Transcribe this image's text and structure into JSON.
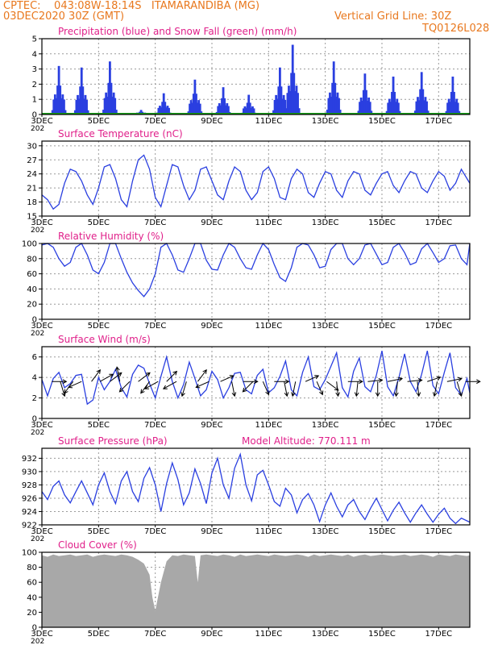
{
  "header": {
    "line1": "CPTEC:    043:08W-18:14S   ITAMARANDIBA (MG)",
    "line2": "03DEC2020 30Z (GMT)",
    "grid_note": "Vertical Grid Line: 30Z",
    "run_id": "TQ0126L028"
  },
  "colors": {
    "header": "#e8781e",
    "title": "#e0208a",
    "series": "#2a3fe0",
    "snow": "#18a018",
    "cloud": "#a8a8a8",
    "arrow": "#000000",
    "grid": "#9a9a9a"
  },
  "x_axis": {
    "start_day": 3,
    "end_day": 18.1,
    "tick_days": [
      3,
      5,
      7,
      9,
      11,
      13,
      15,
      17
    ],
    "tick_labels": [
      "3DEC",
      "5DEC",
      "7DEC",
      "9DEC",
      "11DEC",
      "13DEC",
      "15DEC",
      "17DEC"
    ],
    "clipped_label": "202"
  },
  "chart_data": [
    {
      "type": "bar",
      "title": "Precipitation (blue) and Snow Fall (green) (mm/h)",
      "ylim": [
        0,
        5
      ],
      "yticks": [
        "0",
        "1",
        "2",
        "3",
        "4",
        "5"
      ],
      "grid": true,
      "series": [
        {
          "name": "Precipitation",
          "peaks": [
            {
              "day": 3.6,
              "value": 3.2
            },
            {
              "day": 4.4,
              "value": 3.1
            },
            {
              "day": 5.4,
              "value": 3.5
            },
            {
              "day": 6.5,
              "value": 0.3
            },
            {
              "day": 7.3,
              "value": 1.4
            },
            {
              "day": 8.4,
              "value": 2.3
            },
            {
              "day": 9.4,
              "value": 1.8
            },
            {
              "day": 10.3,
              "value": 1.3
            },
            {
              "day": 11.4,
              "value": 3.1
            },
            {
              "day": 11.85,
              "value": 4.6
            },
            {
              "day": 13.3,
              "value": 3.5
            },
            {
              "day": 14.4,
              "value": 2.7
            },
            {
              "day": 15.4,
              "value": 2.5
            },
            {
              "day": 16.4,
              "value": 2.8
            },
            {
              "day": 17.5,
              "value": 2.5
            }
          ]
        },
        {
          "name": "Snow Fall",
          "value_all": 0
        }
      ]
    },
    {
      "type": "line",
      "title": "Surface Temperature (nC)",
      "ylim": [
        15,
        31
      ],
      "yticks": [
        "15",
        "18",
        "21",
        "24",
        "27",
        "30"
      ],
      "grid": true,
      "x": [
        3.0,
        3.2,
        3.4,
        3.6,
        3.8,
        4.0,
        4.2,
        4.4,
        4.6,
        4.8,
        5.0,
        5.2,
        5.4,
        5.6,
        5.8,
        6.0,
        6.2,
        6.4,
        6.6,
        6.8,
        7.0,
        7.2,
        7.4,
        7.6,
        7.8,
        8.0,
        8.2,
        8.4,
        8.6,
        8.8,
        9.0,
        9.2,
        9.4,
        9.6,
        9.8,
        10.0,
        10.2,
        10.4,
        10.6,
        10.8,
        11.0,
        11.2,
        11.4,
        11.6,
        11.8,
        12.0,
        12.2,
        12.4,
        12.6,
        12.8,
        13.0,
        13.2,
        13.4,
        13.6,
        13.8,
        14.0,
        14.2,
        14.4,
        14.6,
        14.8,
        15.0,
        15.2,
        15.4,
        15.6,
        15.8,
        16.0,
        16.2,
        16.4,
        16.6,
        16.8,
        17.0,
        17.2,
        17.4,
        17.6,
        17.8,
        18.0,
        18.1
      ],
      "y": [
        19.5,
        18.5,
        16.5,
        17.5,
        22.0,
        25.0,
        24.5,
        22.5,
        19.5,
        17.5,
        21.0,
        25.5,
        26.0,
        23.0,
        18.5,
        17.0,
        22.5,
        27.0,
        28.0,
        25.0,
        19.0,
        17.0,
        21.5,
        26.0,
        25.5,
        21.5,
        18.5,
        20.5,
        25.0,
        25.5,
        22.5,
        19.5,
        18.5,
        22.5,
        25.5,
        24.5,
        20.5,
        18.5,
        20.0,
        24.5,
        25.5,
        23.0,
        19.0,
        18.5,
        23.0,
        25.0,
        24.0,
        20.0,
        19.0,
        22.0,
        24.5,
        24.0,
        20.5,
        19.0,
        22.5,
        24.5,
        24.0,
        20.5,
        19.5,
        22.0,
        24.0,
        24.5,
        21.5,
        20.0,
        22.5,
        24.5,
        24.0,
        21.0,
        20.0,
        22.5,
        24.5,
        23.5,
        20.5,
        22.0,
        25.0,
        23.0,
        22.0
      ]
    },
    {
      "type": "line",
      "title": "Relative Humidity (%)",
      "ylim": [
        0,
        100
      ],
      "yticks": [
        "0",
        "20",
        "40",
        "60",
        "80",
        "100"
      ],
      "grid": true,
      "x": [
        3.0,
        3.2,
        3.4,
        3.6,
        3.8,
        4.0,
        4.2,
        4.4,
        4.6,
        4.8,
        5.0,
        5.2,
        5.4,
        5.6,
        5.8,
        6.0,
        6.2,
        6.4,
        6.6,
        6.8,
        7.0,
        7.2,
        7.4,
        7.6,
        7.8,
        8.0,
        8.2,
        8.4,
        8.6,
        8.8,
        9.0,
        9.2,
        9.4,
        9.6,
        9.8,
        10.0,
        10.2,
        10.4,
        10.6,
        10.8,
        11.0,
        11.2,
        11.4,
        11.6,
        11.8,
        12.0,
        12.2,
        12.4,
        12.6,
        12.8,
        13.0,
        13.2,
        13.4,
        13.6,
        13.8,
        14.0,
        14.2,
        14.4,
        14.6,
        14.8,
        15.0,
        15.2,
        15.4,
        15.6,
        15.8,
        16.0,
        16.2,
        16.4,
        16.6,
        16.8,
        17.0,
        17.2,
        17.4,
        17.6,
        17.8,
        18.0,
        18.1
      ],
      "y": [
        98,
        100,
        95,
        80,
        70,
        75,
        95,
        100,
        85,
        65,
        60,
        75,
        100,
        100,
        80,
        62,
        48,
        38,
        30,
        40,
        60,
        95,
        100,
        85,
        65,
        62,
        80,
        100,
        100,
        78,
        66,
        65,
        85,
        100,
        95,
        80,
        68,
        66,
        85,
        100,
        92,
        72,
        55,
        50,
        68,
        95,
        100,
        98,
        85,
        68,
        70,
        92,
        100,
        100,
        80,
        72,
        80,
        98,
        100,
        86,
        72,
        75,
        95,
        100,
        88,
        72,
        75,
        93,
        100,
        88,
        75,
        80,
        97,
        98,
        80,
        72,
        100
      ]
    },
    {
      "type": "line",
      "title": "Surface Wind (m/s)",
      "ylim": [
        0,
        7
      ],
      "yticks": [
        "0",
        "2",
        "4",
        "6"
      ],
      "grid": true,
      "x": [
        3.0,
        3.2,
        3.4,
        3.6,
        3.8,
        4.0,
        4.2,
        4.4,
        4.6,
        4.8,
        5.0,
        5.2,
        5.4,
        5.6,
        5.8,
        6.0,
        6.2,
        6.4,
        6.6,
        6.8,
        7.0,
        7.2,
        7.4,
        7.6,
        7.8,
        8.0,
        8.2,
        8.4,
        8.6,
        8.8,
        9.0,
        9.2,
        9.4,
        9.6,
        9.8,
        10.0,
        10.2,
        10.4,
        10.6,
        10.8,
        11.0,
        11.2,
        11.4,
        11.6,
        11.8,
        12.0,
        12.2,
        12.4,
        12.6,
        12.8,
        13.0,
        13.2,
        13.4,
        13.6,
        13.8,
        14.0,
        14.2,
        14.4,
        14.6,
        14.8,
        15.0,
        15.2,
        15.4,
        15.6,
        15.8,
        16.0,
        16.2,
        16.4,
        16.6,
        16.8,
        17.0,
        17.2,
        17.4,
        17.6,
        17.8,
        18.0,
        18.1
      ],
      "y": [
        3.8,
        2.2,
        3.9,
        4.5,
        3.0,
        3.4,
        4.2,
        4.3,
        1.4,
        1.8,
        4.0,
        2.8,
        3.6,
        4.8,
        3.0,
        2.1,
        4.3,
        5.2,
        4.9,
        3.4,
        2.0,
        4.1,
        6.0,
        3.6,
        2.0,
        3.3,
        5.5,
        3.9,
        2.2,
        2.8,
        4.6,
        3.8,
        2.0,
        3.0,
        4.4,
        4.5,
        2.8,
        2.4,
        4.2,
        4.8,
        2.5,
        3.0,
        4.1,
        5.6,
        2.8,
        2.2,
        4.5,
        6.0,
        3.1,
        2.8,
        3.8,
        5.1,
        6.4,
        3.0,
        2.1,
        4.6,
        5.9,
        3.1,
        2.6,
        4.2,
        6.6,
        3.1,
        2.2,
        4.0,
        6.3,
        3.6,
        2.6,
        4.3,
        6.6,
        3.2,
        2.4,
        4.5,
        6.4,
        3.0,
        2.3,
        3.9,
        2.5
      ],
      "arrows": [
        {
          "day": 3.35,
          "u": 1.0,
          "v": 0.0
        },
        {
          "day": 3.65,
          "u": 0.3,
          "v": -1.0
        },
        {
          "day": 4.1,
          "u": -0.6,
          "v": -0.8
        },
        {
          "day": 4.4,
          "u": -0.9,
          "v": -0.4
        },
        {
          "day": 4.75,
          "u": 0.6,
          "v": 0.8
        },
        {
          "day": 5.05,
          "u": 0.9,
          "v": 0.5
        },
        {
          "day": 5.4,
          "u": 0.8,
          "v": 0.6
        },
        {
          "day": 5.75,
          "u": -0.2,
          "v": 1.0
        },
        {
          "day": 6.1,
          "u": -0.7,
          "v": -0.7
        },
        {
          "day": 6.4,
          "u": 0.8,
          "v": 0.6
        },
        {
          "day": 6.8,
          "u": -0.6,
          "v": -0.8
        },
        {
          "day": 7.1,
          "u": -0.9,
          "v": -0.5
        },
        {
          "day": 7.4,
          "u": 0.7,
          "v": 0.7
        },
        {
          "day": 7.75,
          "u": -0.9,
          "v": -0.5
        },
        {
          "day": 8.1,
          "u": -0.3,
          "v": -1.0
        },
        {
          "day": 8.5,
          "u": 0.6,
          "v": 0.8
        },
        {
          "day": 8.9,
          "u": -0.9,
          "v": -0.4
        },
        {
          "day": 9.3,
          "u": 0.9,
          "v": 0.4
        },
        {
          "day": 9.7,
          "u": 0.2,
          "v": -1.0
        },
        {
          "day": 10.1,
          "u": 1.0,
          "v": 0.0
        },
        {
          "day": 10.45,
          "u": -0.7,
          "v": -0.7
        },
        {
          "day": 10.8,
          "u": 0.4,
          "v": -0.9
        },
        {
          "day": 11.2,
          "u": 1.0,
          "v": 0.0
        },
        {
          "day": 11.55,
          "u": 0.2,
          "v": -1.0
        },
        {
          "day": 11.95,
          "u": -0.2,
          "v": -1.0
        },
        {
          "day": 12.3,
          "u": 0.9,
          "v": 0.4
        },
        {
          "day": 12.7,
          "u": 0.4,
          "v": -0.9
        },
        {
          "day": 13.05,
          "u": 0.8,
          "v": -0.6
        },
        {
          "day": 13.4,
          "u": 0.1,
          "v": -1.0
        },
        {
          "day": 13.8,
          "u": 1.0,
          "v": 0.0
        },
        {
          "day": 14.15,
          "u": -0.1,
          "v": -1.0
        },
        {
          "day": 14.5,
          "u": 1.0,
          "v": 0.1
        },
        {
          "day": 14.85,
          "u": 0.0,
          "v": -1.0
        },
        {
          "day": 15.2,
          "u": 1.0,
          "v": 0.2
        },
        {
          "day": 15.55,
          "u": -0.1,
          "v": -1.0
        },
        {
          "day": 15.9,
          "u": 1.0,
          "v": 0.1
        },
        {
          "day": 16.25,
          "u": 0.1,
          "v": -1.0
        },
        {
          "day": 16.6,
          "u": 0.9,
          "v": 0.3
        },
        {
          "day": 16.95,
          "u": -0.2,
          "v": -1.0
        },
        {
          "day": 17.3,
          "u": 1.0,
          "v": 0.2
        },
        {
          "day": 17.65,
          "u": 0.3,
          "v": -1.0
        },
        {
          "day": 17.95,
          "u": 1.0,
          "v": 0.0
        }
      ]
    },
    {
      "type": "line",
      "title": "Surface Pressure (hPa)",
      "annotation": "Model Altitude: 770.111 m",
      "ylim": [
        922,
        933.5
      ],
      "yticks": [
        "922",
        "924",
        "926",
        "928",
        "930",
        "932"
      ],
      "grid": true,
      "x": [
        3.0,
        3.2,
        3.4,
        3.6,
        3.8,
        4.0,
        4.2,
        4.4,
        4.6,
        4.8,
        5.0,
        5.2,
        5.4,
        5.6,
        5.8,
        6.0,
        6.2,
        6.4,
        6.6,
        6.8,
        7.0,
        7.2,
        7.4,
        7.6,
        7.8,
        8.0,
        8.2,
        8.4,
        8.6,
        8.8,
        9.0,
        9.2,
        9.4,
        9.6,
        9.8,
        10.0,
        10.2,
        10.4,
        10.6,
        10.8,
        11.0,
        11.2,
        11.4,
        11.6,
        11.8,
        12.0,
        12.2,
        12.4,
        12.6,
        12.8,
        13.0,
        13.2,
        13.4,
        13.6,
        13.8,
        14.0,
        14.2,
        14.4,
        14.6,
        14.8,
        15.0,
        15.2,
        15.4,
        15.6,
        15.8,
        16.0,
        16.2,
        16.4,
        16.6,
        16.8,
        17.0,
        17.2,
        17.4,
        17.6,
        17.8,
        18.0,
        18.1
      ],
      "y": [
        927.0,
        925.8,
        927.8,
        928.6,
        926.5,
        925.3,
        927.0,
        928.6,
        926.8,
        925.0,
        928.0,
        929.8,
        927.0,
        925.2,
        928.6,
        930.0,
        927.0,
        925.5,
        929.0,
        930.6,
        928.0,
        924.0,
        928.2,
        931.3,
        928.8,
        925.0,
        926.8,
        930.4,
        928.2,
        925.2,
        929.8,
        932.0,
        928.0,
        926.0,
        930.5,
        932.6,
        928.0,
        925.6,
        929.5,
        930.2,
        928.0,
        925.5,
        924.8,
        927.5,
        926.5,
        923.8,
        925.8,
        926.7,
        925.0,
        922.5,
        925.0,
        926.8,
        924.8,
        923.2,
        925.0,
        925.8,
        924.0,
        922.8,
        924.5,
        926.0,
        924.3,
        922.6,
        924.2,
        925.4,
        923.8,
        922.4,
        923.8,
        925.0,
        923.6,
        922.4,
        923.6,
        924.5,
        923.0,
        922.2,
        923.0,
        922.6,
        922.4
      ]
    },
    {
      "type": "area",
      "title": "Cloud Cover (%)",
      "ylim": [
        0,
        100
      ],
      "yticks": [
        "0",
        "20",
        "40",
        "60",
        "80",
        "100"
      ],
      "grid": true,
      "x": [
        3.0,
        3.2,
        3.4,
        3.6,
        3.8,
        4.0,
        4.2,
        4.4,
        4.6,
        4.8,
        5.0,
        5.2,
        5.4,
        5.6,
        5.8,
        6.0,
        6.2,
        6.4,
        6.6,
        6.8,
        6.9,
        7.0,
        7.2,
        7.4,
        7.6,
        7.8,
        8.0,
        8.2,
        8.4,
        8.5,
        8.6,
        8.8,
        9.0,
        9.2,
        9.4,
        9.6,
        9.8,
        10.0,
        10.2,
        10.4,
        10.6,
        10.8,
        11.0,
        11.2,
        11.4,
        11.6,
        11.8,
        12.0,
        12.2,
        12.4,
        12.6,
        12.8,
        13.0,
        13.2,
        13.4,
        13.6,
        13.8,
        14.0,
        14.2,
        14.4,
        14.6,
        14.8,
        15.0,
        15.2,
        15.4,
        15.6,
        15.8,
        16.0,
        16.2,
        16.4,
        16.6,
        16.8,
        17.0,
        17.2,
        17.4,
        17.6,
        17.8,
        18.0,
        18.1
      ],
      "y": [
        96,
        94,
        97,
        95,
        96,
        97,
        95,
        96,
        97,
        94,
        96,
        97,
        96,
        95,
        97,
        96,
        94,
        90,
        85,
        70,
        40,
        22,
        60,
        88,
        96,
        95,
        97,
        96,
        95,
        60,
        96,
        97,
        96,
        95,
        97,
        96,
        94,
        97,
        95,
        96,
        97,
        96,
        95,
        97,
        96,
        95,
        96,
        97,
        96,
        94,
        97,
        95,
        96,
        97,
        96,
        95,
        97,
        94,
        96,
        97,
        95,
        96,
        97,
        96,
        95,
        96,
        97,
        95,
        96,
        97,
        96,
        94,
        97,
        96,
        95,
        97,
        96,
        95,
        96
      ]
    }
  ],
  "panel_annotations": {
    "wind_arrow_scale_note": "",
    "gap_marker": "202"
  }
}
